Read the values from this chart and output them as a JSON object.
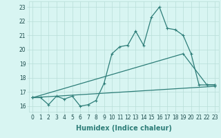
{
  "xlabel": "Humidex (Indice chaleur)",
  "line_color": "#2d7d78",
  "bg_color": "#d8f5f2",
  "grid_color": "#b8ddd8",
  "spine_color": "#2d7d78",
  "xlim": [
    -0.5,
    23.5
  ],
  "ylim": [
    15.6,
    23.4
  ],
  "yticks": [
    16,
    17,
    18,
    19,
    20,
    21,
    22,
    23
  ],
  "xticks": [
    0,
    1,
    2,
    3,
    4,
    5,
    6,
    7,
    8,
    9,
    10,
    11,
    12,
    13,
    14,
    15,
    16,
    17,
    18,
    19,
    20,
    21,
    22,
    23
  ],
  "line1_x": [
    0,
    1,
    2,
    3,
    4,
    5,
    6,
    7,
    8,
    9,
    10,
    11,
    12,
    13,
    14,
    15,
    16,
    17,
    18,
    19,
    20,
    21,
    22,
    23
  ],
  "line1_y": [
    16.6,
    16.6,
    16.1,
    16.7,
    16.5,
    16.7,
    16.0,
    16.1,
    16.4,
    17.6,
    19.7,
    20.2,
    20.3,
    21.3,
    20.3,
    22.3,
    23.0,
    21.5,
    21.4,
    21.0,
    19.7,
    17.5,
    17.5,
    17.5
  ],
  "line2_x": [
    0,
    19,
    22,
    23
  ],
  "line2_y": [
    16.6,
    19.7,
    17.5,
    17.5
  ],
  "line3_x": [
    0,
    23
  ],
  "line3_y": [
    16.6,
    17.4
  ],
  "xlabel_fontsize": 7,
  "tick_fontsize": 5.5,
  "linewidth": 0.9,
  "markersize": 3
}
